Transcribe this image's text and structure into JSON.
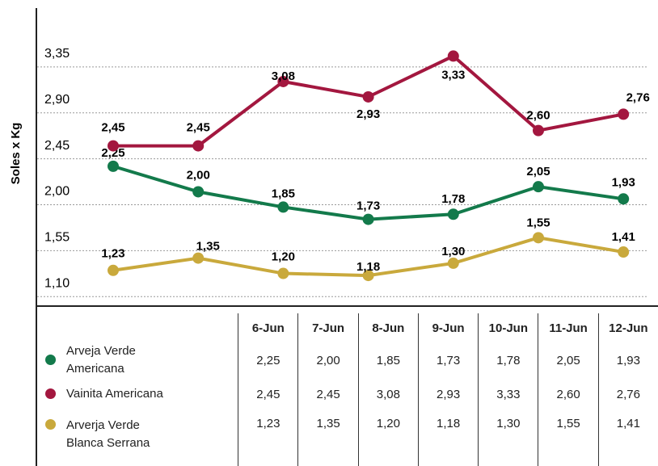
{
  "chart_data": {
    "type": "line",
    "y_label": "Soles x Kg",
    "categories": [
      "6-Jun",
      "7-Jun",
      "8-Jun",
      "9-Jun",
      "10-Jun",
      "11-Jun",
      "12-Jun"
    ],
    "series": [
      {
        "name": "Arveja Verde Americana",
        "color": "#137a4b",
        "values": [
          2.25,
          2.0,
          1.85,
          1.73,
          1.78,
          2.05,
          1.93
        ],
        "value_labels": [
          "2,25",
          "2,00",
          "1,85",
          "1,73",
          "1,78",
          "2,05",
          "1,93"
        ]
      },
      {
        "name": "Vainita Americana",
        "color": "#a3173f",
        "values": [
          2.45,
          2.45,
          3.08,
          2.93,
          3.33,
          2.6,
          2.76
        ],
        "value_labels": [
          "2,45",
          "2,45",
          "3,08",
          "2,93",
          "3,33",
          "2,60",
          "2,76"
        ]
      },
      {
        "name": "Arverja Verde Blanca Serrana",
        "color": "#c9a93c",
        "values": [
          1.23,
          1.35,
          1.2,
          1.18,
          1.3,
          1.55,
          1.41
        ],
        "value_labels": [
          "1,23",
          "1,35",
          "1,20",
          "1,18",
          "1,30",
          "1,55",
          "1,41"
        ]
      }
    ],
    "ylim": [
      0.88,
      3.8
    ],
    "yticks": [
      {
        "value": 1.1,
        "label": "1,10"
      },
      {
        "value": 1.55,
        "label": "1,55"
      },
      {
        "value": 2.0,
        "label": "2,00"
      },
      {
        "value": 2.45,
        "label": "2,45"
      },
      {
        "value": 2.9,
        "label": "2,90"
      },
      {
        "value": 3.35,
        "label": "3,35"
      }
    ],
    "grid": true
  }
}
